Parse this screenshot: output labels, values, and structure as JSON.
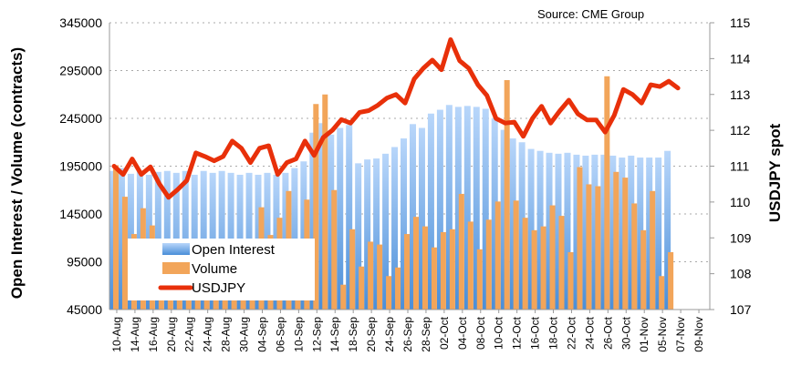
{
  "chart_data": {
    "type": "bar",
    "title": "",
    "source": "Source: CME Group",
    "ylabel": "Open Interest / Volume (contracts)",
    "y2label": "USDJPY spot",
    "ylim": [
      45000,
      345000
    ],
    "y2lim": [
      107,
      115
    ],
    "yticks": [
      "45000",
      "95000",
      "145000",
      "195000",
      "245000",
      "295000",
      "345000"
    ],
    "y2ticks": [
      "107",
      "108",
      "109",
      "110",
      "111",
      "112",
      "113",
      "114",
      "115"
    ],
    "grid": true,
    "legend_position": "bottom-left",
    "x_tick_labels": [
      "10-Aug",
      "14-Aug",
      "16-Aug",
      "20-Aug",
      "22-Aug",
      "24-Aug",
      "28-Aug",
      "30-Aug",
      "04-Sep",
      "06-Sep",
      "10-Sep",
      "12-Sep",
      "14-Sep",
      "18-Sep",
      "20-Sep",
      "24-Sep",
      "26-Sep",
      "28-Sep",
      "02-Oct",
      "04-Oct",
      "08-Oct",
      "10-Oct",
      "12-Oct",
      "16-Oct",
      "18-Oct",
      "22-Oct",
      "24-Oct",
      "26-Oct",
      "30-Oct",
      "01-Nov",
      "05-Nov",
      "07-Nov",
      "09-Nov"
    ],
    "series": [
      {
        "name": "Open Interest",
        "type": "bar",
        "color": "#6FA8E8",
        "values": [
          190000,
          193000,
          187000,
          190000,
          186000,
          189000,
          190000,
          188000,
          190000,
          186000,
          190000,
          188000,
          190000,
          188000,
          186000,
          188000,
          186000,
          188000,
          186000,
          188000,
          193000,
          200000,
          230000,
          240000,
          228000,
          235000,
          238000,
          198000,
          202000,
          203000,
          208000,
          215000,
          224000,
          239000,
          235000,
          250000,
          254000,
          259000,
          257000,
          258000,
          257000,
          255000,
          245000,
          233000,
          224000,
          220000,
          213000,
          211000,
          209000,
          208000,
          209000,
          207000,
          206000,
          207000,
          207000,
          206000,
          204000,
          206000,
          204000,
          204000,
          204000,
          211000,
          null
        ]
      },
      {
        "name": "Volume",
        "type": "bar",
        "color": "#F2A55A",
        "values": [
          196000,
          163000,
          124000,
          151000,
          133000,
          95000,
          85000,
          100000,
          80000,
          110000,
          90000,
          75000,
          105000,
          88000,
          95000,
          100000,
          152000,
          123000,
          141000,
          169000,
          115000,
          160000,
          260000,
          270000,
          170000,
          71000,
          129000,
          90000,
          116000,
          113000,
          80000,
          89000,
          124000,
          142000,
          132000,
          110000,
          126000,
          129000,
          166000,
          137000,
          108000,
          139000,
          158000,
          285000,
          159000,
          141000,
          128000,
          132000,
          154000,
          143000,
          105000,
          194000,
          176000,
          174000,
          289000,
          189000,
          183000,
          156000,
          128000,
          169000,
          80000,
          105000,
          null
        ]
      },
      {
        "name": "USDJPY",
        "type": "line",
        "axis": "right",
        "color": "#E8300A",
        "values": [
          111.0,
          110.77,
          111.2,
          110.77,
          110.98,
          110.5,
          110.13,
          110.35,
          110.6,
          111.37,
          111.27,
          111.15,
          111.27,
          111.7,
          111.5,
          111.1,
          111.5,
          111.57,
          110.77,
          111.1,
          111.2,
          111.7,
          111.3,
          111.8,
          112.0,
          112.3,
          112.2,
          112.5,
          112.55,
          112.7,
          112.9,
          113.0,
          112.76,
          113.43,
          113.73,
          113.96,
          113.69,
          114.53,
          113.94,
          113.73,
          113.27,
          112.97,
          112.33,
          112.2,
          112.23,
          111.83,
          112.33,
          112.67,
          112.2,
          112.54,
          112.84,
          112.46,
          112.29,
          112.29,
          111.95,
          112.42,
          113.14,
          113.0,
          112.76,
          113.27,
          113.22,
          113.37,
          113.18
        ]
      }
    ]
  }
}
